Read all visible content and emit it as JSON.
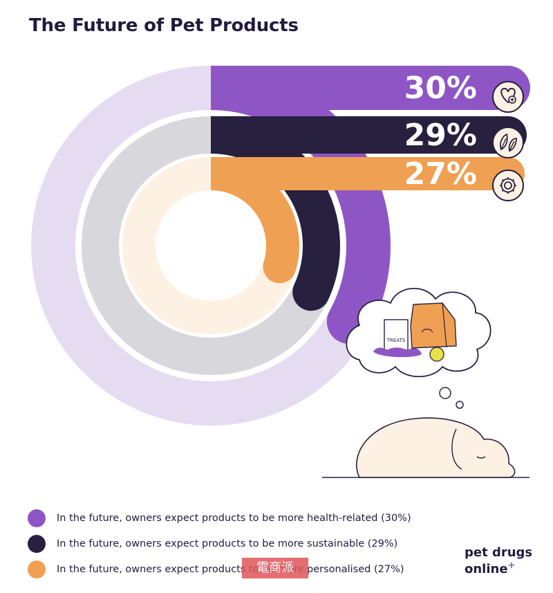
{
  "title": "The Future of Pet Products",
  "chart_data": {
    "type": "radial-bar",
    "series": [
      {
        "name": "In the future, owners expect products to be more health-related (30%)",
        "value": 30,
        "label": "30%",
        "color": "#8e56c4",
        "track_color": "#e6dcf2",
        "icon": "heart-plus-icon"
      },
      {
        "name": "In the future, owners expect products to be more sustainable (29%)",
        "value": 29,
        "label": "29%",
        "color": "#27203f",
        "track_color": "#d8d7dc",
        "icon": "leaves-icon"
      },
      {
        "name": "In the future, owners expect products to be more personalised (27%)",
        "value": 27,
        "label": "27%",
        "color": "#f0a052",
        "track_color": "#fdf1e3",
        "icon": "gear-icon"
      }
    ]
  },
  "illustration": {
    "treats_label": "TREATS",
    "description_icons": [
      "sleeping-dog-icon",
      "thought-bubble-icon",
      "treats-bag-icon",
      "food-bag-icon",
      "tennis-ball-icon"
    ]
  },
  "brand": {
    "line1": "pet drugs",
    "line2": "online",
    "plus": "+"
  },
  "watermark": "電商派"
}
